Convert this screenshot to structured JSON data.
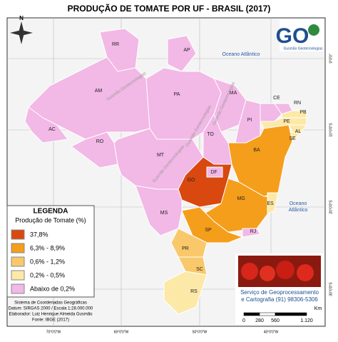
{
  "title": "PRODUÇÃO DE TOMATE POR UF - BRASIL (2017)",
  "states": [
    {
      "label": "RR",
      "class": 4
    },
    {
      "label": "AP",
      "class": 4
    },
    {
      "label": "AM",
      "class": 4
    },
    {
      "label": "AC",
      "class": 4
    },
    {
      "label": "RO",
      "class": 4
    },
    {
      "label": "PA",
      "class": 4
    },
    {
      "label": "MA",
      "class": 4
    },
    {
      "label": "PI",
      "class": 4
    },
    {
      "label": "CE",
      "class": 4
    },
    {
      "label": "RN",
      "class": 4
    },
    {
      "label": "PB",
      "class": 3
    },
    {
      "label": "PE",
      "class": 3
    },
    {
      "label": "AL",
      "class": 3
    },
    {
      "label": "SE",
      "class": 3
    },
    {
      "label": "BA",
      "class": 1
    },
    {
      "label": "TO",
      "class": 4
    },
    {
      "label": "MT",
      "class": 4
    },
    {
      "label": "GO",
      "class": 0
    },
    {
      "label": "DF",
      "class": 4
    },
    {
      "label": "MG",
      "class": 1
    },
    {
      "label": "ES",
      "class": 3
    },
    {
      "label": "RJ",
      "class": 4
    },
    {
      "label": "SP",
      "class": 1
    },
    {
      "label": "MS",
      "class": 4
    },
    {
      "label": "PR",
      "class": 2
    },
    {
      "label": "SC",
      "class": 2
    },
    {
      "label": "RS",
      "class": 3
    }
  ],
  "oceans": [
    "Oceano Atlântico",
    "Oceano",
    "Atlântico"
  ],
  "watermarks": [
    "Gusmão Geotecnologias",
    "Gusmão Geotecnologias",
    "Gusmão Geotecnologias",
    "Gusmão Geotecnologias"
  ],
  "legend": {
    "title": "LEGENDA",
    "subtitle": "Produção de Tomate (%)",
    "items": [
      {
        "label": "37,8%",
        "color": "#d9480f"
      },
      {
        "label": "6,3% - 8,9%",
        "color": "#f59e1b"
      },
      {
        "label": "0,6% - 1,2%",
        "color": "#f9c86a"
      },
      {
        "label": "0,2% - 0,5%",
        "color": "#fce9a8"
      },
      {
        "label": "Abaixo de 0,2%",
        "color": "#f2b8e6"
      }
    ]
  },
  "credits": [
    "Sistema de Coordenadas Geográficas",
    "Datum: SIRGAS 2000 / Escala 1:28.000.000",
    "Elaborador: Luiz Henrique Almeida Gusmão",
    "Fonte: IBGE (2017)"
  ],
  "service": [
    "Serviço de Geoprocessamento",
    "e Cartografia (91) 98306-5306"
  ],
  "scale": {
    "ticks": [
      "0",
      "280",
      "560",
      "1.120"
    ],
    "unit": "Km"
  },
  "longitudes": [
    "70°0'0\"W",
    "60°0'0\"W",
    "50°0'0\"W",
    "40°0'0\"W"
  ],
  "latitudes": [
    "0°0'0\"",
    "10°0'0\"S",
    "20°0'0\"S",
    "30°0'0\"S"
  ],
  "logo": {
    "mark": "GO",
    "text": "Gusmão Geotecnologias"
  },
  "north": "N"
}
